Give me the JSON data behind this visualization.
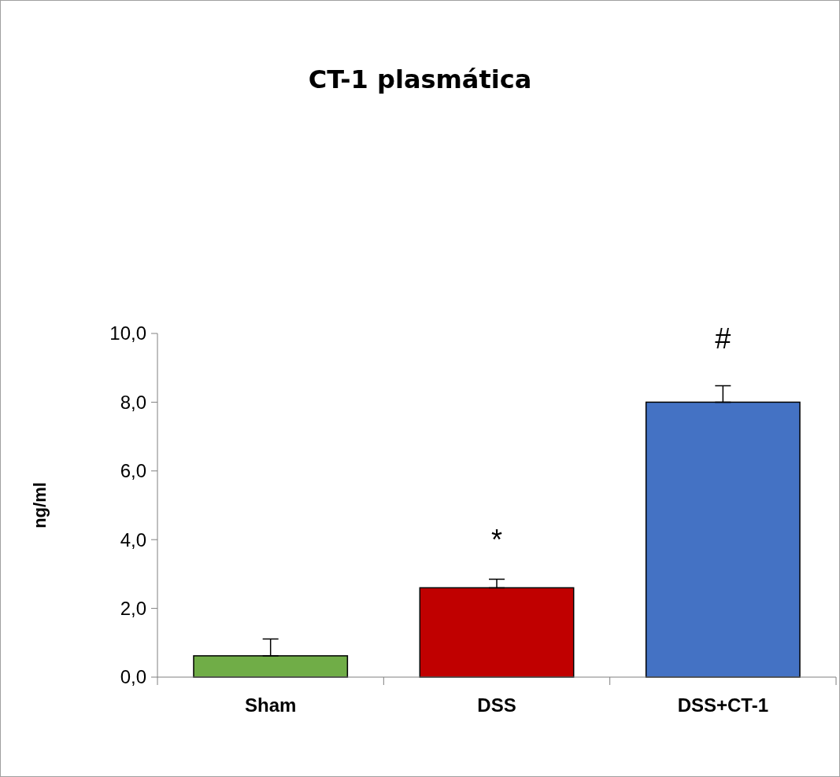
{
  "chart_data": {
    "type": "bar",
    "title": "CT-1 plasmática",
    "ylabel": "ng/ml",
    "categories": [
      "Sham",
      "DSS",
      "DSS+CT-1"
    ],
    "values": [
      0.62,
      2.6,
      8.0
    ],
    "colors": [
      "#70ad47",
      "#c00000",
      "#4472c4"
    ],
    "errors": [
      [
        0.62,
        1.11
      ],
      [
        2.6,
        2.85
      ],
      [
        8.0,
        8.48
      ]
    ],
    "ylim": [
      0,
      10
    ],
    "yticks": [
      {
        "value": 0,
        "label": "0,0"
      },
      {
        "value": 2,
        "label": "2,0"
      },
      {
        "value": 4,
        "label": "4,0"
      },
      {
        "value": 6,
        "label": "6,0"
      },
      {
        "value": 8,
        "label": "8,0"
      },
      {
        "value": 10,
        "label": "10,0"
      }
    ],
    "grid": false,
    "annotations": [
      "*",
      "#"
    ]
  }
}
